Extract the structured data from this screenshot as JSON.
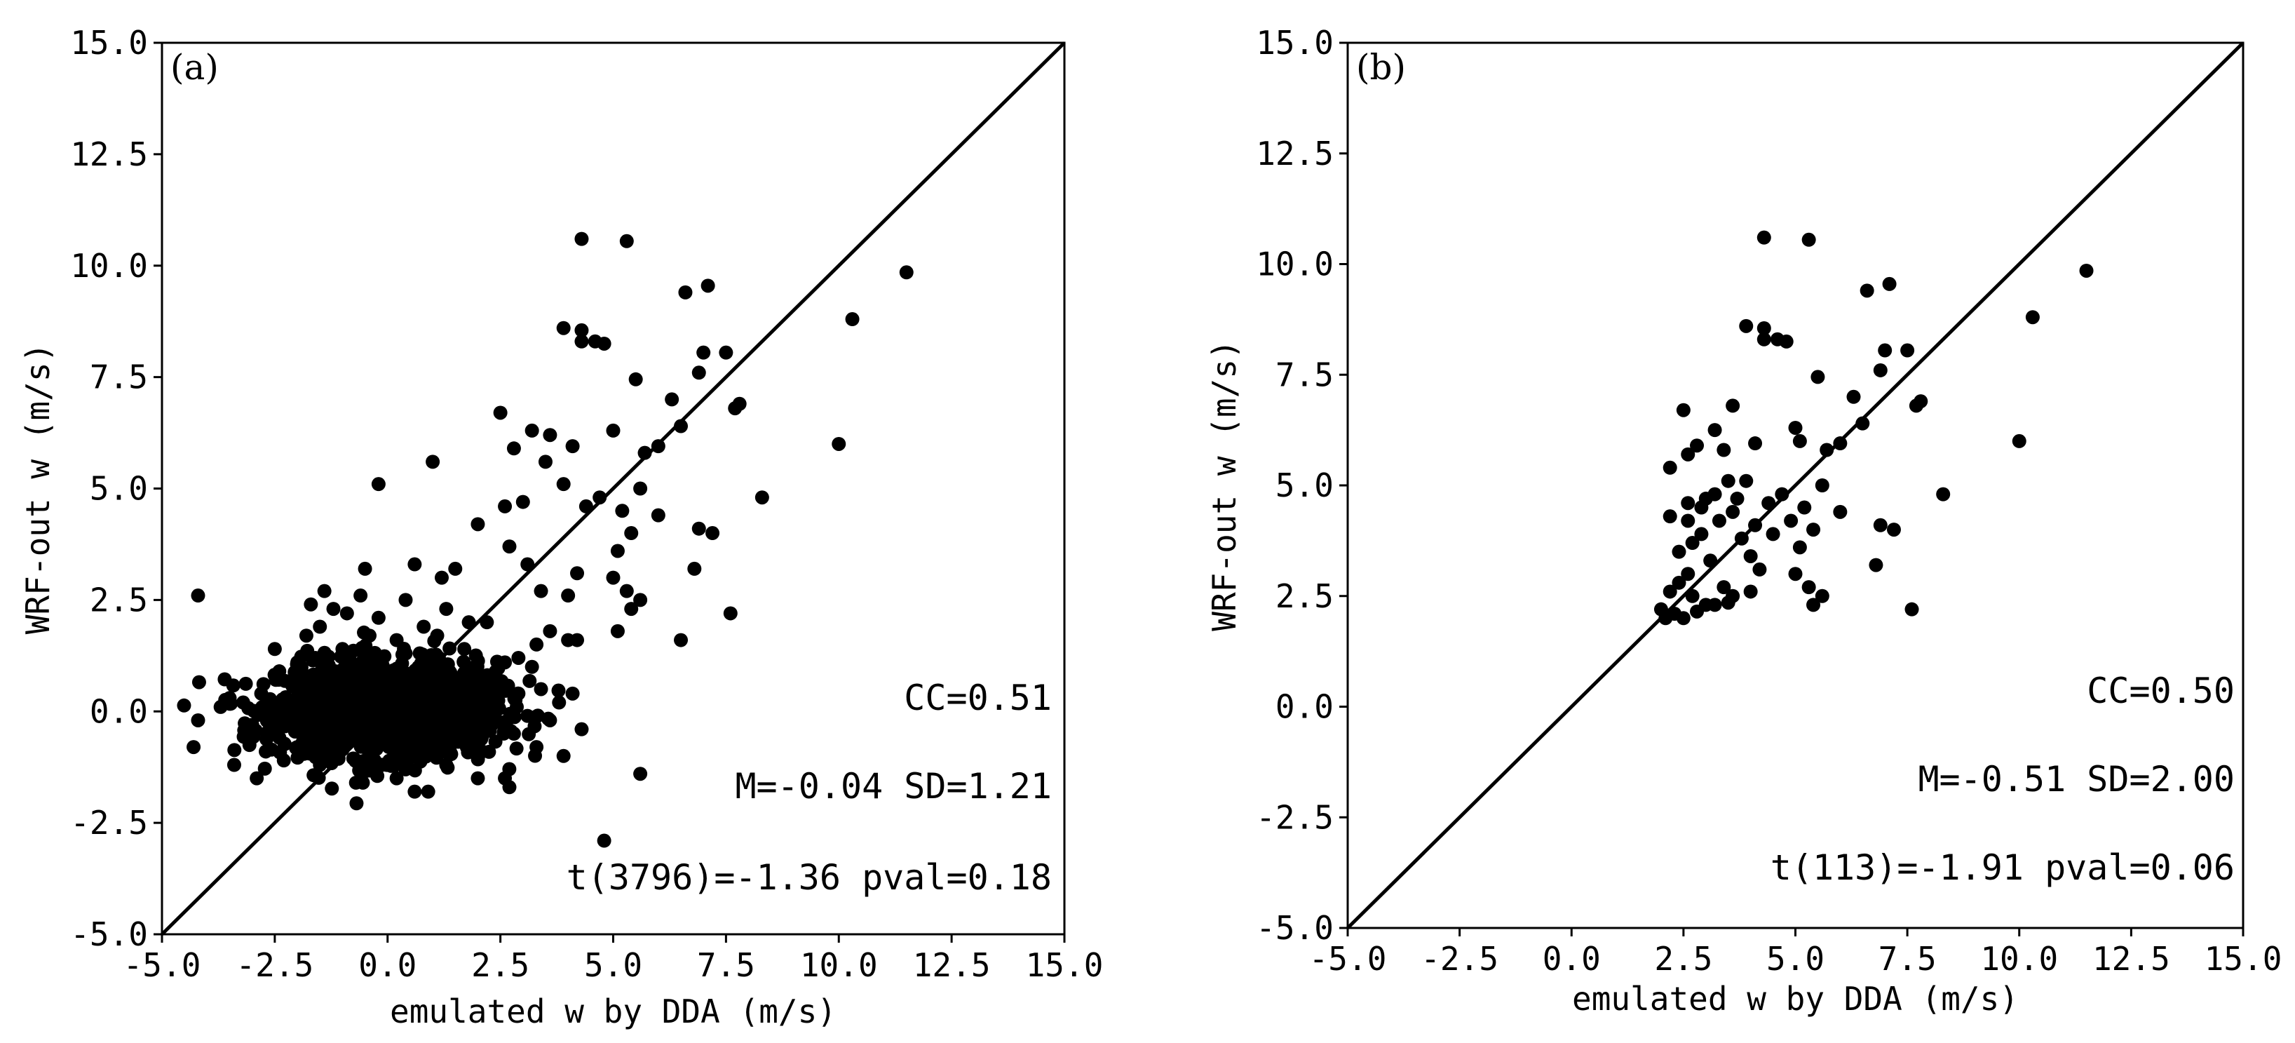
{
  "chart_data": [
    {
      "type": "scatter",
      "panel_label": "(a)",
      "xlabel": "emulated w by DDA (m/s)",
      "ylabel": "WRF-out w (m/s)",
      "xlim": [
        -5.0,
        15.0
      ],
      "ylim": [
        -5.0,
        15.0
      ],
      "x_ticks": [
        "-5.0",
        "-2.5",
        "0.0",
        "2.5",
        "5.0",
        "7.5",
        "10.0",
        "12.5",
        "15.0"
      ],
      "y_ticks": [
        "-5.0",
        "-2.5",
        "0.0",
        "2.5",
        "5.0",
        "7.5",
        "10.0",
        "12.5",
        "15.0"
      ],
      "reference_line": "y = x",
      "grid": false,
      "annotations": [
        "CC=0.51",
        "M=-0.04 SD=1.21",
        "t(3796)=-1.36 pval=0.18"
      ],
      "series": [
        {
          "marker_color": "#000000",
          "points": [
            [
              4.3,
              10.6
            ],
            [
              5.3,
              10.55
            ],
            [
              11.5,
              9.85
            ],
            [
              7.1,
              9.55
            ],
            [
              6.6,
              9.4
            ],
            [
              10.3,
              8.8
            ],
            [
              3.9,
              8.6
            ],
            [
              4.3,
              8.55
            ],
            [
              4.3,
              8.3
            ],
            [
              4.6,
              8.3
            ],
            [
              4.8,
              8.25
            ],
            [
              7.0,
              8.05
            ],
            [
              7.5,
              8.05
            ],
            [
              7.8,
              6.9
            ],
            [
              7.7,
              6.8
            ],
            [
              6.9,
              7.6
            ],
            [
              5.5,
              7.45
            ],
            [
              6.3,
              7.0
            ],
            [
              10.0,
              6.0
            ],
            [
              6.5,
              6.4
            ],
            [
              3.6,
              6.2
            ],
            [
              5.0,
              6.3
            ],
            [
              3.2,
              6.3
            ],
            [
              2.5,
              6.7
            ],
            [
              2.8,
              5.9
            ],
            [
              4.1,
              5.95
            ],
            [
              5.7,
              5.8
            ],
            [
              6.0,
              5.95
            ],
            [
              1.0,
              5.6
            ],
            [
              -0.2,
              5.1
            ],
            [
              3.5,
              5.6
            ],
            [
              3.9,
              5.1
            ],
            [
              5.6,
              5.0
            ],
            [
              8.3,
              4.8
            ],
            [
              4.7,
              4.8
            ],
            [
              4.4,
              4.6
            ],
            [
              5.2,
              4.5
            ],
            [
              3.0,
              4.7
            ],
            [
              2.6,
              4.6
            ],
            [
              2.0,
              4.2
            ],
            [
              6.0,
              4.4
            ],
            [
              5.4,
              4.0
            ],
            [
              6.9,
              4.1
            ],
            [
              7.2,
              4.0
            ],
            [
              5.1,
              3.6
            ],
            [
              6.8,
              3.2
            ],
            [
              2.7,
              3.7
            ],
            [
              3.1,
              3.3
            ],
            [
              4.2,
              3.1
            ],
            [
              1.5,
              3.2
            ],
            [
              -4.2,
              2.6
            ],
            [
              -0.5,
              3.2
            ],
            [
              0.6,
              3.3
            ],
            [
              1.2,
              3.0
            ],
            [
              3.4,
              2.7
            ],
            [
              5.0,
              3.0
            ],
            [
              5.3,
              2.7
            ],
            [
              5.6,
              2.5
            ],
            [
              5.4,
              2.3
            ],
            [
              4.0,
              2.6
            ],
            [
              7.6,
              2.2
            ],
            [
              2.2,
              2.0
            ],
            [
              4.2,
              1.6
            ],
            [
              3.6,
              1.8
            ],
            [
              6.5,
              1.6
            ],
            [
              5.6,
              -1.4
            ],
            [
              4.8,
              -2.9
            ],
            [
              3.6,
              -0.2
            ],
            [
              3.3,
              -0.8
            ],
            [
              3.9,
              -1.0
            ],
            [
              2.6,
              -1.5
            ],
            [
              2.7,
              -1.7
            ],
            [
              2.0,
              -1.5
            ],
            [
              0.9,
              -1.8
            ],
            [
              0.6,
              -1.8
            ],
            [
              0.2,
              -1.5
            ],
            [
              -0.7,
              -1.6
            ],
            [
              -1.5,
              -1.2
            ],
            [
              -2.3,
              -1.1
            ],
            [
              -2.9,
              -1.5
            ],
            [
              -3.4,
              -1.2
            ],
            [
              -4.3,
              -0.8
            ],
            [
              -4.2,
              -0.2
            ],
            [
              -3.7,
              0.1
            ],
            [
              -3.5,
              0.3
            ],
            [
              -3.2,
              0.2
            ],
            [
              -2.8,
              0.4
            ],
            [
              -2.4,
              0.9
            ],
            [
              -2.5,
              1.4
            ],
            [
              -2.0,
              1.1
            ],
            [
              -1.8,
              1.7
            ],
            [
              -1.5,
              1.9
            ],
            [
              -1.7,
              2.4
            ],
            [
              -1.2,
              2.3
            ],
            [
              -0.9,
              2.2
            ],
            [
              -1.4,
              2.7
            ],
            [
              -0.6,
              2.6
            ],
            [
              -0.2,
              2.1
            ],
            [
              0.4,
              2.5
            ],
            [
              1.3,
              2.3
            ],
            [
              1.8,
              2.0
            ],
            [
              2.6,
              1.1
            ],
            [
              2.9,
              1.2
            ],
            [
              3.2,
              1.0
            ],
            [
              3.4,
              0.5
            ],
            [
              3.8,
              0.2
            ],
            [
              4.1,
              0.4
            ],
            [
              4.3,
              -0.4
            ],
            [
              4.0,
              1.6
            ],
            [
              5.1,
              1.8
            ],
            [
              3.3,
              1.5
            ],
            [
              2.4,
              0.9
            ],
            [
              2.1,
              0.6
            ],
            [
              1.7,
              1.4
            ],
            [
              1.1,
              1.7
            ],
            [
              0.8,
              1.9
            ],
            [
              0.2,
              1.6
            ],
            [
              -0.4,
              1.7
            ],
            [
              -1.0,
              1.4
            ],
            [
              -1.6,
              1.2
            ],
            [
              -2.1,
              0.7
            ],
            [
              -2.6,
              0.0
            ],
            [
              -3.0,
              -0.3
            ],
            [
              -2.7,
              -0.9
            ],
            [
              -2.0,
              -0.8
            ],
            [
              -1.2,
              -1.0
            ],
            [
              -0.3,
              -1.2
            ],
            [
              0.4,
              -1.3
            ],
            [
              1.3,
              -1.2
            ],
            [
              2.1,
              -0.9
            ],
            [
              2.8,
              -0.5
            ],
            [
              3.1,
              -0.1
            ],
            [
              2.9,
              0.4
            ],
            [
              2.4,
              0.3
            ],
            [
              1.9,
              -0.3
            ],
            [
              1.4,
              0.1
            ],
            [
              0.9,
              0.5
            ],
            [
              0.3,
              0.8
            ],
            [
              -0.2,
              1.0
            ],
            [
              -0.7,
              0.9
            ],
            [
              -1.3,
              0.5
            ],
            [
              -1.8,
              0.2
            ],
            [
              -2.2,
              -0.3
            ],
            [
              -1.7,
              -0.5
            ],
            [
              -1.1,
              -0.6
            ],
            [
              -0.6,
              -0.7
            ],
            [
              0.0,
              -0.6
            ],
            [
              0.6,
              -0.5
            ],
            [
              1.2,
              -0.6
            ],
            [
              1.8,
              -0.5
            ],
            [
              2.3,
              -0.2
            ],
            [
              1.6,
              0.7
            ],
            [
              1.0,
              1.1
            ],
            [
              0.4,
              1.3
            ],
            [
              -0.3,
              0.4
            ],
            [
              -0.9,
              0.2
            ],
            [
              -1.4,
              -0.1
            ],
            [
              -0.5,
              -0.2
            ],
            [
              0.1,
              0.1
            ],
            [
              0.7,
              -0.1
            ],
            [
              1.3,
              0.3
            ],
            [
              -0.1,
              -0.3
            ]
          ],
          "dense_core": {
            "x_range": [
              -2.4,
              2.4
            ],
            "y_range": [
              -1.0,
              1.1
            ]
          }
        }
      ]
    },
    {
      "type": "scatter",
      "panel_label": "(b)",
      "xlabel": "emulated w by DDA (m/s)",
      "ylabel": "WRF-out w (m/s)",
      "xlim": [
        -5.0,
        15.0
      ],
      "ylim": [
        -5.0,
        15.0
      ],
      "x_ticks": [
        "-5.0",
        "-2.5",
        "0.0",
        "2.5",
        "5.0",
        "7.5",
        "10.0",
        "12.5",
        "15.0"
      ],
      "y_ticks": [
        "-5.0",
        "-2.5",
        "0.0",
        "2.5",
        "5.0",
        "7.5",
        "10.0",
        "12.5",
        "15.0"
      ],
      "reference_line": "y = x",
      "grid": false,
      "annotations": [
        "CC=0.50",
        "M=-0.51 SD=2.00",
        "t(113)=-1.91 pval=0.06"
      ],
      "series": [
        {
          "marker_color": "#000000",
          "points": [
            [
              4.3,
              10.6
            ],
            [
              5.3,
              10.55
            ],
            [
              11.5,
              9.85
            ],
            [
              7.1,
              9.55
            ],
            [
              6.6,
              9.4
            ],
            [
              10.3,
              8.8
            ],
            [
              3.9,
              8.6
            ],
            [
              4.3,
              8.55
            ],
            [
              4.3,
              8.3
            ],
            [
              4.6,
              8.3
            ],
            [
              4.8,
              8.25
            ],
            [
              7.0,
              8.05
            ],
            [
              7.5,
              8.05
            ],
            [
              7.8,
              6.9
            ],
            [
              7.7,
              6.8
            ],
            [
              6.9,
              7.6
            ],
            [
              5.5,
              7.45
            ],
            [
              6.3,
              7.0
            ],
            [
              10.0,
              6.0
            ],
            [
              6.5,
              6.4
            ],
            [
              5.0,
              6.3
            ],
            [
              5.1,
              6.0
            ],
            [
              3.2,
              6.25
            ],
            [
              3.6,
              6.8
            ],
            [
              2.5,
              6.7
            ],
            [
              2.8,
              5.9
            ],
            [
              2.6,
              5.7
            ],
            [
              2.2,
              5.4
            ],
            [
              4.1,
              5.95
            ],
            [
              3.4,
              5.8
            ],
            [
              5.7,
              5.8
            ],
            [
              6.0,
              5.95
            ],
            [
              5.6,
              5.0
            ],
            [
              3.5,
              5.1
            ],
            [
              3.9,
              5.1
            ],
            [
              3.2,
              4.8
            ],
            [
              8.3,
              4.8
            ],
            [
              4.7,
              4.8
            ],
            [
              4.4,
              4.6
            ],
            [
              5.2,
              4.5
            ],
            [
              3.0,
              4.7
            ],
            [
              2.6,
              4.6
            ],
            [
              2.9,
              4.5
            ],
            [
              3.6,
              4.4
            ],
            [
              2.2,
              4.3
            ],
            [
              2.6,
              4.2
            ],
            [
              3.3,
              4.2
            ],
            [
              6.0,
              4.4
            ],
            [
              5.4,
              4.0
            ],
            [
              4.9,
              4.2
            ],
            [
              6.9,
              4.1
            ],
            [
              7.2,
              4.0
            ],
            [
              5.1,
              3.6
            ],
            [
              4.0,
              3.4
            ],
            [
              6.8,
              3.2
            ],
            [
              2.7,
              3.7
            ],
            [
              3.1,
              3.3
            ],
            [
              2.4,
              3.5
            ],
            [
              4.2,
              3.1
            ],
            [
              2.6,
              3.0
            ],
            [
              3.8,
              3.8
            ],
            [
              3.4,
              2.7
            ],
            [
              3.6,
              2.5
            ],
            [
              5.0,
              3.0
            ],
            [
              5.3,
              2.7
            ],
            [
              5.6,
              2.5
            ],
            [
              5.4,
              2.3
            ],
            [
              4.0,
              2.6
            ],
            [
              2.7,
              2.5
            ],
            [
              3.0,
              2.3
            ],
            [
              2.2,
              2.6
            ],
            [
              2.0,
              2.2
            ],
            [
              2.3,
              2.1
            ],
            [
              2.5,
              2.0
            ],
            [
              2.8,
              2.15
            ],
            [
              3.2,
              2.3
            ],
            [
              3.5,
              2.35
            ],
            [
              7.6,
              2.2
            ],
            [
              4.1,
              4.1
            ],
            [
              4.5,
              3.9
            ],
            [
              2.9,
              3.9
            ],
            [
              3.7,
              4.7
            ],
            [
              2.1,
              2.0
            ],
            [
              2.4,
              2.8
            ]
          ]
        }
      ]
    }
  ]
}
